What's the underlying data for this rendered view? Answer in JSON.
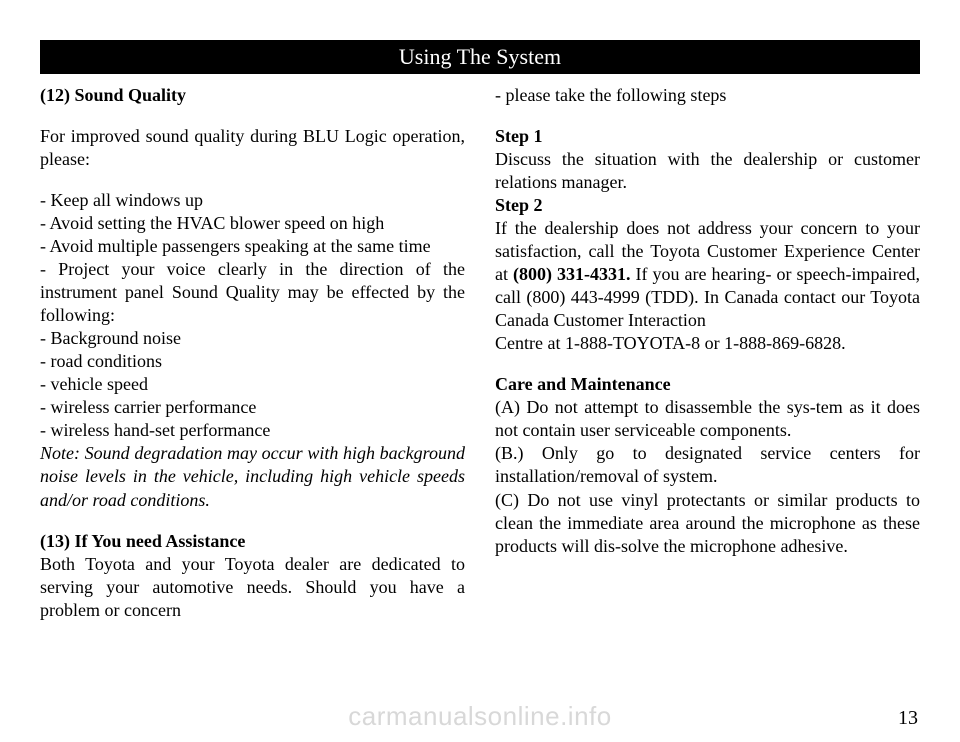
{
  "header": "Using The System",
  "left": {
    "sec12_title": "(12) Sound Quality",
    "sec12_intro": "For improved sound quality during BLU Logic operation, please:",
    "sec12_b1": "- Keep all windows up",
    "sec12_b2": "- Avoid setting the HVAC blower speed on high",
    "sec12_b3": "- Avoid multiple passengers speaking at the same time",
    "sec12_b4": "- Project your voice clearly in the direction of the instrument panel Sound Quality may be effected by the following:",
    "sec12_b5": "- Background noise",
    "sec12_b6": "- road conditions",
    "sec12_b7": "- vehicle speed",
    "sec12_b8": "- wireless carrier performance",
    "sec12_b9": "- wireless hand-set performance",
    "sec12_note": "  Note:  Sound degradation may occur with high background noise levels in the vehicle, including high vehicle speeds and/or road conditions.",
    "sec13_title": "(13) If You need Assistance",
    "sec13_p1": "Both Toyota and your Toyota dealer are dedicated to serving your automotive needs. Should you have a problem or concern"
  },
  "right": {
    "r1": "- please take the following steps",
    "step1_label": "Step 1",
    "step1_text": "Discuss the situation with the dealership or customer relations manager.",
    "step2_label": "Step 2",
    "step2_text_a": "If the dealership does not address your concern to your satisfaction, call the Toyota Customer Experience Center at ",
    "step2_phone": "(800) 331-4331.",
    "step2_text_b": " If you are hearing- or speech-impaired, call (800) 443-4999 (TDD). In Canada contact our Toyota Canada Customer Interaction",
    "step2_centre": "Centre at 1-888-TOYOTA-8 or 1-888-869-6828.",
    "care_title": "Care and Maintenance",
    "care_a": "(A) Do not attempt to disassemble the sys-tem as it does not contain user serviceable components.",
    "care_b": "(B.) Only go to designated service centers for installation/removal of system.",
    "care_c": "(C) Do not use vinyl protectants or similar products to clean the immediate area around the microphone as these products will dis-solve the microphone adhesive."
  },
  "page_number": "13",
  "watermark": "carmanualsonline.info"
}
